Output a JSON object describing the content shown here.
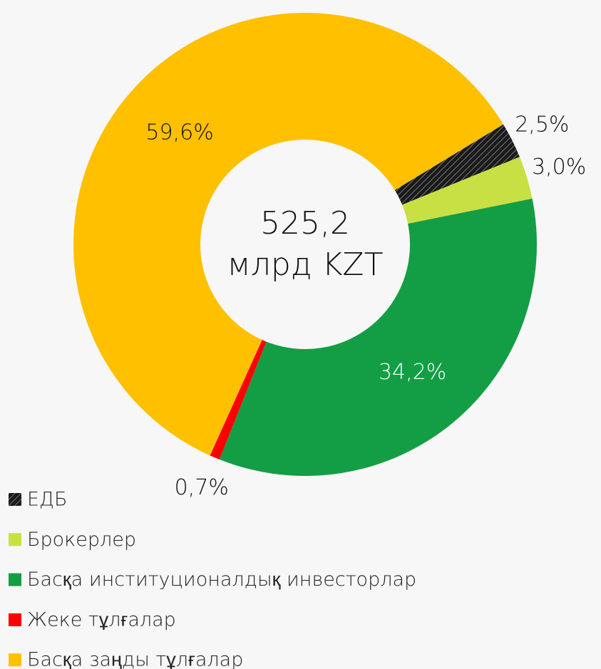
{
  "chart_data": {
    "type": "donut",
    "center_label": [
      "525,2",
      "млрд KZT"
    ],
    "categories": [
      "ЕДБ",
      "Брокерлер",
      "Басқа институционалдық инвесторлар",
      "Жеке тұлғалар",
      "Басқа заңды тұлғалар"
    ],
    "values": [
      2.5,
      3.0,
      34.2,
      0.7,
      59.6
    ],
    "value_labels": [
      "2,5%",
      "3,0%",
      "34,2%",
      "0,7%",
      "59,6%"
    ],
    "colors": [
      "#1a1a1a",
      "#c8e043",
      "#139e45",
      "#ff0000",
      "#ffc000"
    ],
    "hatch": [
      true,
      false,
      false,
      false,
      false
    ],
    "legend": "bottom-left"
  }
}
